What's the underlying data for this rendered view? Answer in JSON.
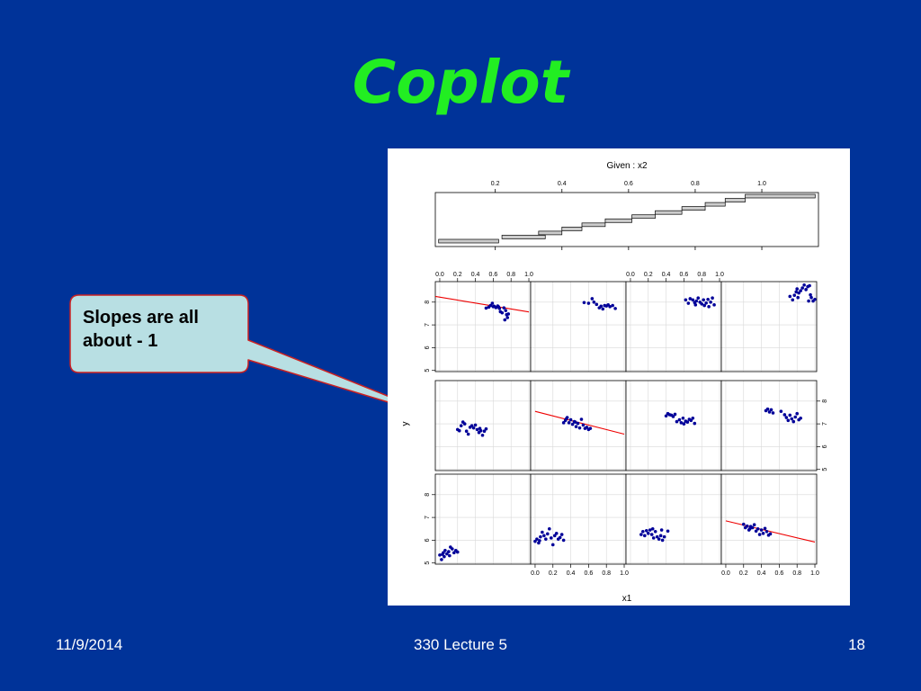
{
  "slide": {
    "title": "Coplot",
    "callout": "Slopes are all\nabout - 1",
    "footer": {
      "date": "11/9/2014",
      "course": "330 Lecture 5",
      "page": "18"
    }
  },
  "colors": {
    "background": "#003399",
    "title": "#22ee22",
    "callout_fill": "#b8dfe3",
    "callout_border": "#cc2222",
    "points": "#000099",
    "fit_line": "#ee0000"
  },
  "chart_data": {
    "type": "scatter",
    "title": "",
    "given": {
      "label": "Given : x2",
      "ticks": [
        0.2,
        0.4,
        0.6,
        0.8,
        1.0
      ],
      "tick_labels": [
        "0.2",
        "0.4",
        "0.6",
        "0.8",
        "1.0"
      ],
      "xlim": [
        0.02,
        1.17
      ],
      "intervals": [
        [
          0.03,
          0.21
        ],
        [
          0.22,
          0.35
        ],
        [
          0.33,
          0.4
        ],
        [
          0.4,
          0.46
        ],
        [
          0.46,
          0.53
        ],
        [
          0.53,
          0.61
        ],
        [
          0.61,
          0.68
        ],
        [
          0.68,
          0.76
        ],
        [
          0.76,
          0.83
        ],
        [
          0.83,
          0.89
        ],
        [
          0.89,
          0.95
        ],
        [
          0.95,
          1.16
        ]
      ]
    },
    "xlabel": "x1",
    "ylabel": "y",
    "xlim": [
      -0.05,
      1.02
    ],
    "ylim": [
      4.95,
      8.9
    ],
    "x_ticks": [
      0.0,
      0.2,
      0.4,
      0.6,
      0.8,
      1.0
    ],
    "x_tick_labels": [
      "0.0",
      "0.2",
      "0.4",
      "0.6",
      "0.8",
      "1.0"
    ],
    "y_ticks": [
      5,
      6,
      7,
      8
    ],
    "y_tick_labels": [
      "5",
      "6",
      "7",
      "8"
    ],
    "grid": true,
    "panels": [
      {
        "row": 0,
        "col": 0,
        "fit": [
          -0.05,
          8.25,
          1.0,
          7.57
        ],
        "points": [
          [
            0.52,
            7.74
          ],
          [
            0.55,
            7.78
          ],
          [
            0.57,
            7.85
          ],
          [
            0.59,
            7.95
          ],
          [
            0.61,
            7.82
          ],
          [
            0.63,
            7.76
          ],
          [
            0.65,
            7.83
          ],
          [
            0.67,
            7.72
          ],
          [
            0.68,
            7.58
          ],
          [
            0.7,
            7.53
          ],
          [
            0.72,
            7.75
          ],
          [
            0.74,
            7.63
          ],
          [
            0.75,
            7.45
          ],
          [
            0.76,
            7.32
          ],
          [
            0.77,
            7.48
          ],
          [
            0.73,
            7.22
          ],
          [
            0.6,
            7.8
          ],
          [
            0.66,
            7.79
          ]
        ]
      },
      {
        "row": 0,
        "col": 1,
        "fit": null,
        "points": [
          [
            0.55,
            7.98
          ],
          [
            0.6,
            7.95
          ],
          [
            0.64,
            8.15
          ],
          [
            0.66,
            8.0
          ],
          [
            0.69,
            7.9
          ],
          [
            0.72,
            7.75
          ],
          [
            0.74,
            7.82
          ],
          [
            0.76,
            7.7
          ],
          [
            0.78,
            7.85
          ],
          [
            0.8,
            7.83
          ],
          [
            0.82,
            7.88
          ],
          [
            0.84,
            7.8
          ],
          [
            0.87,
            7.85
          ],
          [
            0.9,
            7.72
          ]
        ]
      },
      {
        "row": 0,
        "col": 2,
        "fit": null,
        "points": [
          [
            0.62,
            8.1
          ],
          [
            0.65,
            7.95
          ],
          [
            0.67,
            8.15
          ],
          [
            0.7,
            8.1
          ],
          [
            0.72,
            7.98
          ],
          [
            0.74,
            8.05
          ],
          [
            0.76,
            8.18
          ],
          [
            0.78,
            8.0
          ],
          [
            0.8,
            7.92
          ],
          [
            0.82,
            8.1
          ],
          [
            0.83,
            7.85
          ],
          [
            0.85,
            7.96
          ],
          [
            0.87,
            8.12
          ],
          [
            0.88,
            7.8
          ],
          [
            0.9,
            8.0
          ],
          [
            0.92,
            8.18
          ],
          [
            0.94,
            7.88
          ],
          [
            0.73,
            7.88
          ]
        ]
      },
      {
        "row": 0,
        "col": 3,
        "fit": null,
        "points": [
          [
            0.72,
            8.25
          ],
          [
            0.75,
            8.1
          ],
          [
            0.77,
            8.3
          ],
          [
            0.79,
            8.45
          ],
          [
            0.8,
            8.58
          ],
          [
            0.82,
            8.4
          ],
          [
            0.84,
            8.5
          ],
          [
            0.86,
            8.62
          ],
          [
            0.88,
            8.75
          ],
          [
            0.9,
            8.55
          ],
          [
            0.92,
            8.68
          ],
          [
            0.93,
            8.05
          ],
          [
            0.95,
            8.32
          ],
          [
            0.96,
            8.2
          ],
          [
            0.98,
            8.05
          ],
          [
            1.0,
            8.12
          ],
          [
            0.81,
            8.2
          ],
          [
            0.94,
            8.72
          ]
        ]
      },
      {
        "row": 1,
        "col": 0,
        "fit": null,
        "points": [
          [
            0.2,
            6.75
          ],
          [
            0.22,
            6.7
          ],
          [
            0.24,
            6.92
          ],
          [
            0.26,
            7.08
          ],
          [
            0.28,
            7.0
          ],
          [
            0.3,
            6.68
          ],
          [
            0.32,
            6.55
          ],
          [
            0.34,
            6.85
          ],
          [
            0.36,
            6.92
          ],
          [
            0.38,
            6.82
          ],
          [
            0.4,
            6.95
          ],
          [
            0.42,
            6.75
          ],
          [
            0.44,
            6.62
          ],
          [
            0.46,
            6.7
          ],
          [
            0.48,
            6.5
          ],
          [
            0.5,
            6.68
          ],
          [
            0.52,
            6.78
          ],
          [
            0.45,
            6.8
          ]
        ]
      },
      {
        "row": 1,
        "col": 1,
        "fit": [
          0.0,
          7.55,
          1.0,
          6.55
        ],
        "points": [
          [
            0.32,
            7.05
          ],
          [
            0.34,
            7.15
          ],
          [
            0.36,
            7.28
          ],
          [
            0.38,
            7.05
          ],
          [
            0.4,
            7.18
          ],
          [
            0.42,
            6.98
          ],
          [
            0.44,
            7.1
          ],
          [
            0.46,
            6.88
          ],
          [
            0.48,
            7.02
          ],
          [
            0.5,
            6.82
          ],
          [
            0.52,
            7.2
          ],
          [
            0.54,
            6.95
          ],
          [
            0.56,
            6.8
          ],
          [
            0.58,
            6.85
          ],
          [
            0.6,
            6.75
          ],
          [
            0.62,
            6.8
          ],
          [
            0.35,
            7.22
          ],
          [
            0.45,
            7.08
          ]
        ]
      },
      {
        "row": 1,
        "col": 2,
        "fit": null,
        "points": [
          [
            0.4,
            7.35
          ],
          [
            0.42,
            7.45
          ],
          [
            0.44,
            7.4
          ],
          [
            0.46,
            7.38
          ],
          [
            0.5,
            7.42
          ],
          [
            0.52,
            7.1
          ],
          [
            0.55,
            7.18
          ],
          [
            0.57,
            7.05
          ],
          [
            0.59,
            7.25
          ],
          [
            0.6,
            7.0
          ],
          [
            0.62,
            7.12
          ],
          [
            0.64,
            7.08
          ],
          [
            0.66,
            7.2
          ],
          [
            0.68,
            7.15
          ],
          [
            0.7,
            7.25
          ],
          [
            0.72,
            7.02
          ],
          [
            0.48,
            7.32
          ]
        ]
      },
      {
        "row": 1,
        "col": 3,
        "fit": null,
        "points": [
          [
            0.45,
            7.58
          ],
          [
            0.47,
            7.65
          ],
          [
            0.49,
            7.52
          ],
          [
            0.51,
            7.62
          ],
          [
            0.53,
            7.48
          ],
          [
            0.62,
            7.55
          ],
          [
            0.66,
            7.4
          ],
          [
            0.68,
            7.28
          ],
          [
            0.7,
            7.15
          ],
          [
            0.72,
            7.38
          ],
          [
            0.74,
            7.22
          ],
          [
            0.76,
            7.1
          ],
          [
            0.78,
            7.3
          ],
          [
            0.8,
            7.45
          ],
          [
            0.82,
            7.18
          ],
          [
            0.84,
            7.25
          ]
        ]
      },
      {
        "row": 2,
        "col": 0,
        "fit": null,
        "points": [
          [
            0.0,
            5.35
          ],
          [
            0.02,
            5.15
          ],
          [
            0.04,
            5.45
          ],
          [
            0.05,
            5.28
          ],
          [
            0.06,
            5.55
          ],
          [
            0.08,
            5.4
          ],
          [
            0.1,
            5.5
          ],
          [
            0.11,
            5.32
          ],
          [
            0.12,
            5.7
          ],
          [
            0.14,
            5.62
          ],
          [
            0.16,
            5.45
          ],
          [
            0.18,
            5.55
          ],
          [
            0.2,
            5.48
          ],
          [
            0.03,
            5.38
          ]
        ]
      },
      {
        "row": 2,
        "col": 1,
        "fit": null,
        "points": [
          [
            0.0,
            5.95
          ],
          [
            0.02,
            6.05
          ],
          [
            0.04,
            5.88
          ],
          [
            0.06,
            6.15
          ],
          [
            0.08,
            6.35
          ],
          [
            0.1,
            6.2
          ],
          [
            0.12,
            6.05
          ],
          [
            0.14,
            6.28
          ],
          [
            0.16,
            6.5
          ],
          [
            0.18,
            6.1
          ],
          [
            0.2,
            5.8
          ],
          [
            0.22,
            6.2
          ],
          [
            0.24,
            6.3
          ],
          [
            0.26,
            6.05
          ],
          [
            0.28,
            6.12
          ],
          [
            0.3,
            6.25
          ],
          [
            0.32,
            6.0
          ],
          [
            0.05,
            5.98
          ]
        ]
      },
      {
        "row": 2,
        "col": 2,
        "fit": null,
        "points": [
          [
            0.12,
            6.25
          ],
          [
            0.14,
            6.38
          ],
          [
            0.16,
            6.2
          ],
          [
            0.18,
            6.42
          ],
          [
            0.2,
            6.3
          ],
          [
            0.22,
            6.45
          ],
          [
            0.24,
            6.25
          ],
          [
            0.26,
            6.1
          ],
          [
            0.28,
            6.38
          ],
          [
            0.3,
            6.15
          ],
          [
            0.32,
            6.05
          ],
          [
            0.34,
            6.2
          ],
          [
            0.35,
            6.45
          ],
          [
            0.36,
            6.0
          ],
          [
            0.38,
            6.15
          ],
          [
            0.42,
            6.4
          ],
          [
            0.25,
            6.5
          ]
        ]
      },
      {
        "row": 2,
        "col": 3,
        "fit": [
          0.0,
          6.85,
          1.0,
          5.92
        ],
        "points": [
          [
            0.2,
            6.7
          ],
          [
            0.22,
            6.55
          ],
          [
            0.24,
            6.62
          ],
          [
            0.26,
            6.45
          ],
          [
            0.28,
            6.6
          ],
          [
            0.3,
            6.55
          ],
          [
            0.32,
            6.68
          ],
          [
            0.34,
            6.4
          ],
          [
            0.36,
            6.5
          ],
          [
            0.38,
            6.25
          ],
          [
            0.4,
            6.45
          ],
          [
            0.42,
            6.3
          ],
          [
            0.44,
            6.52
          ],
          [
            0.46,
            6.38
          ],
          [
            0.48,
            6.22
          ],
          [
            0.5,
            6.28
          ],
          [
            0.27,
            6.5
          ]
        ]
      }
    ]
  }
}
